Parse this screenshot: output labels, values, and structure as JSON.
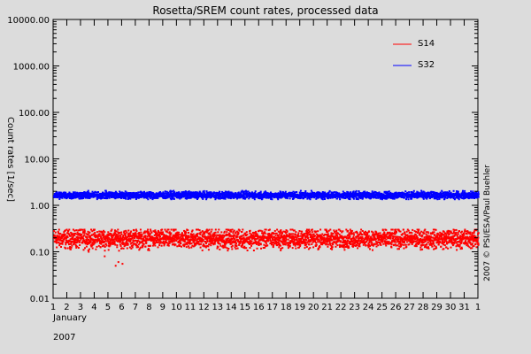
{
  "chart_data": {
    "type": "scatter",
    "title": "Rosetta/SREM count rates, processed data",
    "xlabel_line1": "January",
    "xlabel_line2": "2007",
    "ylabel": "Count rates [1/sec]",
    "credit": "2007 © PSI/ESA/Paul Buehler",
    "y_scale": "log",
    "ylim": [
      0.01,
      10000
    ],
    "y_ticks": [
      "0.01",
      "0.10",
      "1.00",
      "10.00",
      "100.00",
      "1000.00",
      "10000.00"
    ],
    "x_ticks": [
      "1",
      "2",
      "3",
      "4",
      "5",
      "6",
      "7",
      "8",
      "9",
      "10",
      "11",
      "12",
      "13",
      "14",
      "15",
      "16",
      "17",
      "18",
      "19",
      "20",
      "21",
      "22",
      "23",
      "24",
      "25",
      "26",
      "27",
      "28",
      "29",
      "30",
      "31",
      "1"
    ],
    "legend_position": "top-right",
    "series": [
      {
        "name": "S14",
        "color": "#ff0000",
        "center": 0.19,
        "low": 0.1,
        "high": 0.3,
        "outliers": [
          [
            5.5,
            0.05
          ],
          [
            5.7,
            0.06
          ],
          [
            6.0,
            0.055
          ],
          [
            4.7,
            0.08
          ]
        ]
      },
      {
        "name": "S32",
        "color": "#0000ff",
        "center": 1.65,
        "low": 1.35,
        "high": 2.05
      }
    ]
  }
}
